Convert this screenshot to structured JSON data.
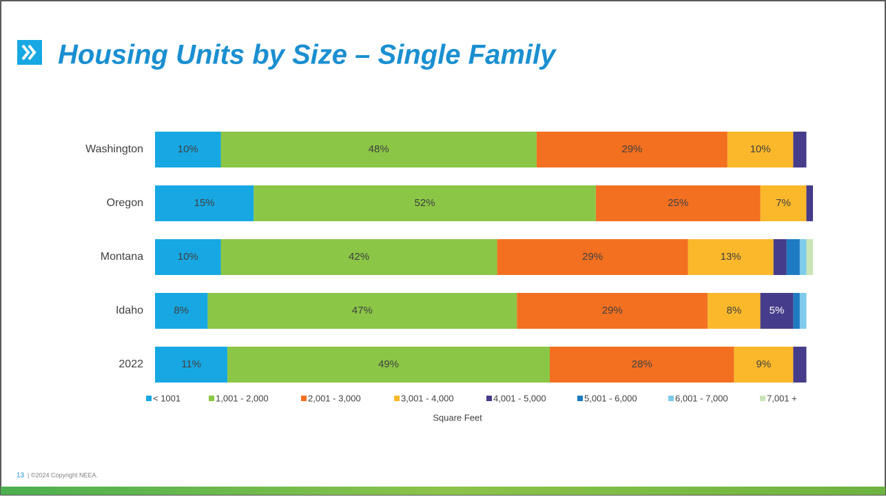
{
  "chart_data": {
    "type": "stacked_bar",
    "title": "Housing Units by Size – Single Family",
    "categories": [
      "Washington",
      "Oregon",
      "Montana",
      "Idaho",
      "2022"
    ],
    "xlim": [
      0,
      100
    ],
    "x_label": "Square Feet",
    "legend": "bottom",
    "series": [
      {
        "name": "< 1001",
        "color": "#17a8e3",
        "values": [
          10,
          15,
          10,
          8,
          11
        ],
        "value_labels": [
          "10%",
          "15%",
          "10%",
          "8%",
          "11%"
        ]
      },
      {
        "name": "1,001 - 2,000",
        "color": "#8bc646",
        "values": [
          48,
          52,
          42,
          47,
          49
        ],
        "value_labels": [
          "48%",
          "52%",
          "42%",
          "47%",
          "49%"
        ]
      },
      {
        "name": "2,001 - 3,000",
        "color": "#f37021",
        "values": [
          29,
          25,
          29,
          29,
          28
        ],
        "value_labels": [
          "29%",
          "25%",
          "29%",
          "29%",
          "28%"
        ]
      },
      {
        "name": "3,001 - 4,000",
        "color": "#fbb82b",
        "values": [
          10,
          7,
          13,
          8,
          9
        ],
        "value_labels": [
          "10%",
          "7%",
          "13%",
          "8%",
          "9%"
        ]
      },
      {
        "name": "4,001 - 5,000",
        "color": "#453c8b",
        "values": [
          2,
          1,
          2,
          5,
          2
        ],
        "value_labels": [
          null,
          null,
          null,
          "5%",
          null
        ]
      },
      {
        "name": "5,001 - 6,000",
        "color": "#1f7bc1",
        "values": [
          0,
          0,
          2,
          1,
          0
        ],
        "value_labels": [
          null,
          null,
          null,
          null,
          null
        ]
      },
      {
        "name": "6,001 - 7,000",
        "color": "#7fcbeb",
        "values": [
          0,
          0,
          1,
          1,
          0
        ],
        "value_labels": [
          null,
          null,
          null,
          null,
          null
        ]
      },
      {
        "name": "7,001 +",
        "color": "#c9e5b5",
        "values": [
          0,
          0,
          1,
          0,
          0
        ],
        "value_labels": [
          null,
          null,
          null,
          null,
          null
        ]
      }
    ]
  },
  "footer": {
    "page_number": "13",
    "copyright": "| ©2024 Copyright NEEA."
  }
}
